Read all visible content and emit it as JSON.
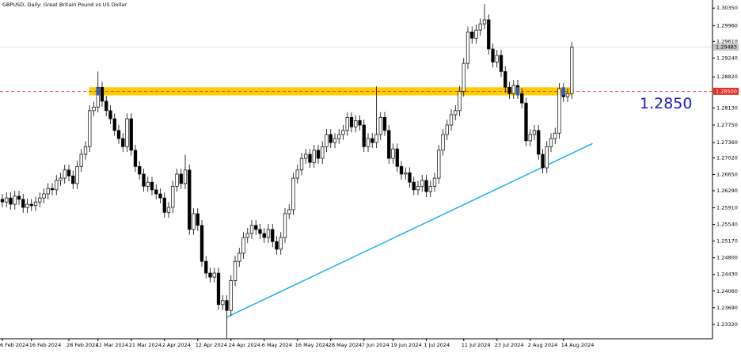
{
  "chart_data": {
    "type": "candlestick",
    "title": "GBPUSD, Daily:  Great Britain Pound vs US Dollar",
    "categories": [
      "6 Feb 2024",
      null,
      null,
      null,
      null,
      null,
      null,
      "16 Feb 2024",
      null,
      null,
      null,
      null,
      null,
      null,
      null,
      null,
      "28 Feb 2024",
      null,
      null,
      null,
      null,
      null,
      null,
      "11 Mar 2024",
      null,
      null,
      null,
      null,
      null,
      null,
      null,
      "21 Mar 2024",
      null,
      null,
      null,
      null,
      null,
      null,
      null,
      "2 Apr 2024",
      null,
      null,
      null,
      null,
      null,
      null,
      null,
      "12 Apr 2024",
      null,
      null,
      null,
      null,
      null,
      null,
      null,
      "24 Apr 2024",
      null,
      null,
      null,
      null,
      null,
      null,
      null,
      "6 May 2024",
      null,
      null,
      null,
      null,
      null,
      null,
      null,
      "16 May 2024",
      null,
      null,
      null,
      null,
      null,
      null,
      null,
      "28 May 2024",
      null,
      null,
      null,
      null,
      null,
      null,
      null,
      "7 Jun 2024",
      null,
      null,
      null,
      null,
      null,
      null,
      "19 Jun 2024",
      null,
      null,
      null,
      null,
      null,
      null,
      null,
      "1 Jul 2024",
      null,
      null,
      null,
      null,
      null,
      null,
      null,
      null,
      "11 Jul 2024",
      null,
      null,
      null,
      null,
      null,
      null,
      null,
      "23 Jul 2024",
      null,
      null,
      null,
      null,
      null,
      null,
      null,
      "2 Aug 2024",
      null,
      null,
      null,
      null,
      null,
      null,
      null,
      "14 Aug 2024",
      null,
      null
    ],
    "open": [
      1.261,
      1.2604,
      1.2613,
      1.2599,
      1.2617,
      1.261,
      1.2592,
      1.2599,
      1.2596,
      1.2604,
      1.2613,
      1.2622,
      1.2634,
      1.2631,
      1.2652,
      1.2657,
      1.2675,
      1.2662,
      1.2645,
      1.2683,
      1.271,
      1.2727,
      1.2807,
      1.2815,
      1.2859,
      1.2828,
      1.2807,
      1.2789,
      1.2763,
      1.2745,
      1.2727,
      1.2789,
      1.2719,
      1.2683,
      1.2666,
      1.2639,
      1.2648,
      1.2631,
      1.2622,
      1.2613,
      1.2581,
      1.2592,
      1.2639,
      1.2666,
      1.2645,
      1.2675,
      1.2543,
      1.2578,
      1.2552,
      1.2472,
      1.2446,
      1.2437,
      1.2446,
      1.2376,
      1.2385,
      1.2363,
      1.2429,
      1.2472,
      1.249,
      1.2525,
      1.2534,
      1.2552,
      1.2543,
      1.2534,
      1.2525,
      1.2543,
      1.2516,
      1.2499,
      1.2525,
      1.2578,
      1.2587,
      1.2657,
      1.2675,
      1.2701,
      1.271,
      1.2692,
      1.2719,
      1.2701,
      1.2727,
      1.2754,
      1.2736,
      1.2745,
      1.2754,
      1.2763,
      1.2792,
      1.2771,
      1.2785,
      1.2775,
      1.2727,
      1.2745,
      1.2736,
      1.2754,
      1.2792,
      1.2763,
      1.2701,
      1.2722,
      1.2683,
      1.2666,
      1.2669,
      1.2648,
      1.2631,
      1.2639,
      1.2652,
      1.2627,
      1.2639,
      1.2657,
      1.2719,
      1.2754,
      1.2775,
      1.2798,
      1.2807,
      1.285,
      1.2912,
      1.2982,
      1.2968,
      1.2986,
      1.3,
      1.3009,
      1.2944,
      1.2915,
      1.293,
      1.2894,
      1.2859,
      1.2845,
      1.2863,
      1.2845,
      1.2824,
      1.274,
      1.2754,
      1.2763,
      1.271,
      1.268,
      1.2727,
      1.2745,
      1.2757,
      1.2856,
      1.2838,
      1.2845
    ],
    "high": [
      1.2622,
      1.2625,
      1.2625,
      1.2629,
      1.2629,
      1.2622,
      1.2611,
      1.2611,
      1.2616,
      1.2625,
      1.2634,
      1.2646,
      1.2646,
      1.2664,
      1.2669,
      1.2687,
      1.2687,
      1.2674,
      1.2695,
      1.2722,
      1.2739,
      1.2819,
      1.2827,
      1.2894,
      1.2871,
      1.284,
      1.2819,
      1.2801,
      1.2775,
      1.2757,
      1.2801,
      1.2801,
      1.2731,
      1.2695,
      1.2678,
      1.266,
      1.266,
      1.2643,
      1.2634,
      1.2625,
      1.2604,
      1.2651,
      1.2678,
      1.2678,
      1.2709,
      1.2687,
      1.259,
      1.259,
      1.2564,
      1.2484,
      1.2458,
      1.2458,
      1.2458,
      1.2397,
      1.2397,
      1.2441,
      1.2484,
      1.2502,
      1.2537,
      1.2546,
      1.2564,
      1.2564,
      1.2555,
      1.2546,
      1.2555,
      1.2555,
      1.2528,
      1.2537,
      1.259,
      1.2599,
      1.2669,
      1.2687,
      1.2713,
      1.2722,
      1.2722,
      1.2731,
      1.2731,
      1.2739,
      1.2766,
      1.2766,
      1.2757,
      1.2766,
      1.2775,
      1.2804,
      1.2804,
      1.2797,
      1.2797,
      1.2787,
      1.2757,
      1.2757,
      1.2861,
      1.2804,
      1.2804,
      1.2775,
      1.2734,
      1.2734,
      1.2695,
      1.2681,
      1.2681,
      1.266,
      1.2651,
      1.2664,
      1.2664,
      1.2651,
      1.2669,
      1.2731,
      1.2766,
      1.2787,
      1.281,
      1.2819,
      1.2862,
      1.2924,
      1.2994,
      1.2994,
      1.2998,
      1.3012,
      1.3044,
      1.3021,
      1.2956,
      1.2942,
      1.2942,
      1.2906,
      1.2871,
      1.2875,
      1.2875,
      1.2857,
      1.2836,
      1.2766,
      1.2775,
      1.2775,
      1.2722,
      1.2739,
      1.2757,
      1.2769,
      1.2868,
      1.2868,
      1.2857,
      1.296
    ],
    "low": [
      1.2592,
      1.2592,
      1.2587,
      1.2587,
      1.2598,
      1.258,
      1.258,
      1.2584,
      1.2584,
      1.2592,
      1.2601,
      1.261,
      1.2619,
      1.2619,
      1.264,
      1.2645,
      1.265,
      1.2633,
      1.2633,
      1.2671,
      1.2698,
      1.2715,
      1.2795,
      1.2803,
      1.2816,
      1.2795,
      1.2777,
      1.2751,
      1.2733,
      1.2715,
      1.2715,
      1.2707,
      1.2671,
      1.2654,
      1.2627,
      1.2627,
      1.2619,
      1.261,
      1.2601,
      1.2569,
      1.2569,
      1.258,
      1.2627,
      1.2633,
      1.2633,
      1.2531,
      1.2531,
      1.254,
      1.246,
      1.2434,
      1.2425,
      1.2425,
      1.2364,
      1.2364,
      1.23,
      1.2351,
      1.2417,
      1.246,
      1.2478,
      1.2513,
      1.2522,
      1.2531,
      1.2522,
      1.2513,
      1.2513,
      1.2504,
      1.2487,
      1.2487,
      1.2513,
      1.2566,
      1.2575,
      1.2645,
      1.2663,
      1.2689,
      1.268,
      1.268,
      1.2689,
      1.2689,
      1.2715,
      1.2724,
      1.2724,
      1.2733,
      1.2742,
      1.2751,
      1.2759,
      1.2759,
      1.2763,
      1.2715,
      1.2715,
      1.2724,
      1.2724,
      1.2742,
      1.2751,
      1.2689,
      1.2689,
      1.2671,
      1.2654,
      1.2654,
      1.2636,
      1.2619,
      1.2619,
      1.2627,
      1.2615,
      1.2615,
      1.2627,
      1.2645,
      1.2707,
      1.2742,
      1.2763,
      1.2786,
      1.2795,
      1.2838,
      1.29,
      1.2956,
      1.2956,
      1.2974,
      1.2988,
      1.2932,
      1.2903,
      1.2903,
      1.2882,
      1.2847,
      1.2833,
      1.2833,
      1.2833,
      1.2812,
      1.2728,
      1.2728,
      1.2742,
      1.2698,
      1.2668,
      1.2668,
      1.2715,
      1.2733,
      1.2745,
      1.2826,
      1.2826,
      1.2833
    ],
    "close": [
      1.2604,
      1.2613,
      1.2599,
      1.2617,
      1.261,
      1.2592,
      1.2599,
      1.2596,
      1.2604,
      1.2613,
      1.2622,
      1.2634,
      1.2631,
      1.2652,
      1.2657,
      1.2675,
      1.2662,
      1.2645,
      1.2683,
      1.271,
      1.2727,
      1.2807,
      1.2815,
      1.2859,
      1.2828,
      1.2807,
      1.2789,
      1.2763,
      1.2745,
      1.2727,
      1.2789,
      1.2719,
      1.2683,
      1.2666,
      1.2639,
      1.2648,
      1.2631,
      1.2622,
      1.2613,
      1.2581,
      1.2592,
      1.2639,
      1.2666,
      1.2645,
      1.2675,
      1.2543,
      1.2578,
      1.2552,
      1.2472,
      1.2446,
      1.2437,
      1.2446,
      1.2376,
      1.2385,
      1.2363,
      1.2429,
      1.2472,
      1.249,
      1.2525,
      1.2534,
      1.2552,
      1.2543,
      1.2534,
      1.2525,
      1.2543,
      1.2516,
      1.2499,
      1.2525,
      1.2578,
      1.2587,
      1.2657,
      1.2675,
      1.2701,
      1.271,
      1.2692,
      1.2719,
      1.2701,
      1.2727,
      1.2754,
      1.2736,
      1.2745,
      1.2754,
      1.2763,
      1.2792,
      1.2771,
      1.2785,
      1.2775,
      1.2727,
      1.2745,
      1.2736,
      1.2754,
      1.2792,
      1.2763,
      1.2701,
      1.2722,
      1.2683,
      1.2666,
      1.2669,
      1.2648,
      1.2631,
      1.2639,
      1.2652,
      1.2627,
      1.2639,
      1.2657,
      1.2719,
      1.2754,
      1.2775,
      1.2798,
      1.2807,
      1.285,
      1.2912,
      1.2982,
      1.2968,
      1.2986,
      1.3,
      1.3009,
      1.2944,
      1.2915,
      1.293,
      1.2894,
      1.2859,
      1.2845,
      1.2863,
      1.2845,
      1.2824,
      1.274,
      1.2754,
      1.2763,
      1.271,
      1.268,
      1.2727,
      1.2745,
      1.2757,
      1.2856,
      1.2838,
      1.2845,
      1.2948
    ],
    "up_color": "#ffffff",
    "down_color": "#000000",
    "ylim": [
      1.23,
      1.3053
    ],
    "yticks": [
      {
        "value": 1.3035,
        "label": "1.30350"
      },
      {
        "value": 1.2996,
        "label": "1.29960"
      },
      {
        "value": 1.2961,
        "label": "1.29610"
      },
      {
        "value": 1.2924,
        "label": "1.29240"
      },
      {
        "value": 1.2882,
        "label": "1.28820"
      },
      {
        "value": 1.2813,
        "label": "1.28130"
      },
      {
        "value": 1.2775,
        "label": "1.27750"
      },
      {
        "value": 1.2736,
        "label": "1.27360"
      },
      {
        "value": 1.2702,
        "label": "1.27020"
      },
      {
        "value": 1.2665,
        "label": "1.26650"
      },
      {
        "value": 1.2629,
        "label": "1.26290"
      },
      {
        "value": 1.2591,
        "label": "1.25910"
      },
      {
        "value": 1.2554,
        "label": "1.25540"
      },
      {
        "value": 1.2517,
        "label": "1.25170"
      },
      {
        "value": 1.248,
        "label": "1.24800"
      },
      {
        "value": 1.2443,
        "label": "1.24430"
      },
      {
        "value": 1.2406,
        "label": "1.24060"
      },
      {
        "value": 1.2369,
        "label": "1.23690"
      },
      {
        "value": 1.2332,
        "label": "1.23320"
      }
    ],
    "zone": {
      "ylim": [
        1.2841,
        1.2859
      ],
      "from": 22,
      "to": 137,
      "color": "#ffcc00"
    },
    "trendline": {
      "start": [
        54,
        1.2348
      ],
      "end": [
        142,
        1.2734
      ],
      "color": "#1ab0f0"
    },
    "level": {
      "value": 1.285,
      "label": "1.28500",
      "color": "#e0302a"
    },
    "current_price": {
      "value": 1.29483,
      "label": "1.29483"
    },
    "annotation": {
      "text": "1.2850",
      "color": "#1a1acc"
    }
  }
}
